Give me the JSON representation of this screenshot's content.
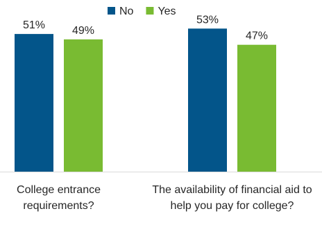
{
  "chart_data": {
    "type": "bar",
    "categories": [
      "College entrance requirements?",
      "The availability of financial aid to help you pay for college?"
    ],
    "series": [
      {
        "name": "No",
        "values": [
          51,
          53
        ],
        "color": "#03558a",
        "labels": [
          "51%",
          "53%"
        ]
      },
      {
        "name": "Yes",
        "values": [
          49,
          47
        ],
        "color": "#79bb32",
        "labels": [
          "49%",
          "47%"
        ]
      }
    ],
    "legend_position": "top",
    "grid": false,
    "value_format": "percent"
  }
}
